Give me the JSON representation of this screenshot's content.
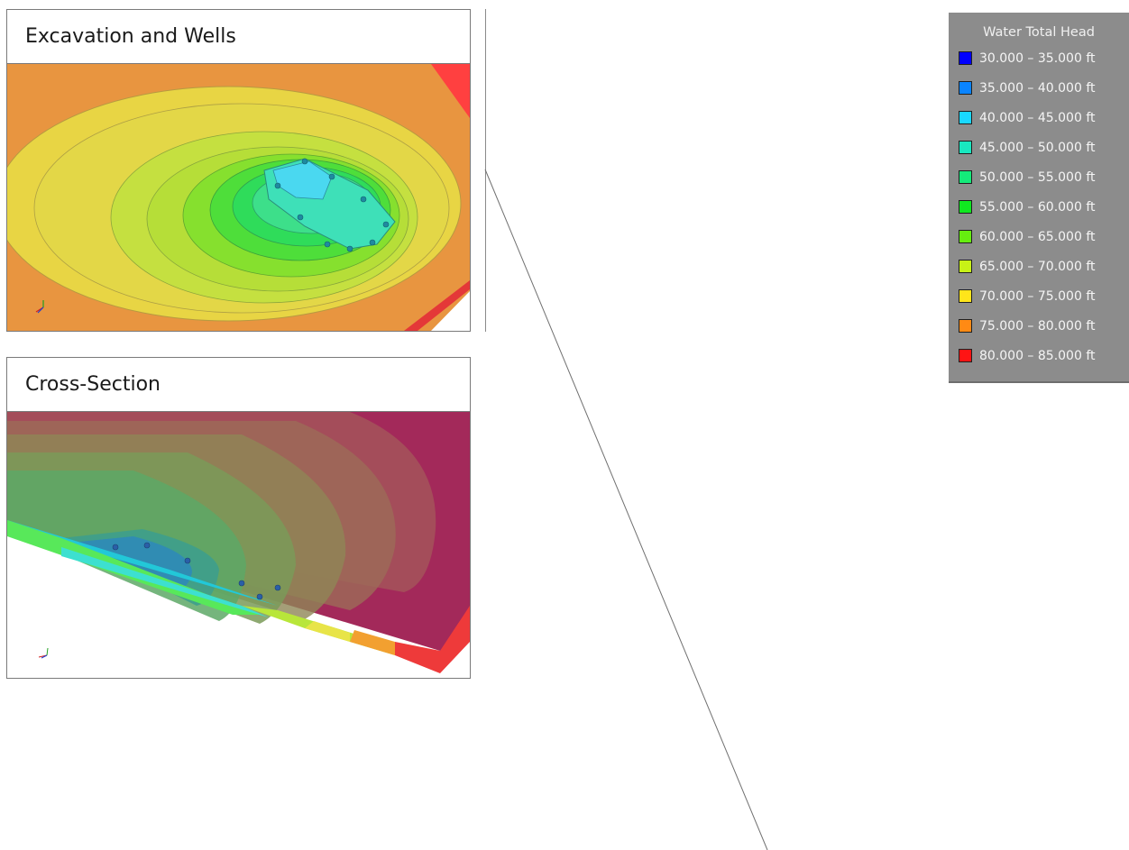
{
  "panels": {
    "excavation": {
      "title": "Excavation and Wells"
    },
    "cross_section": {
      "title": "Cross-Section"
    }
  },
  "legend": {
    "title": "Water Total Head",
    "items": [
      {
        "label": "30.000 – 35.000 ft",
        "color": "#0000ff"
      },
      {
        "label": "35.000 – 40.000 ft",
        "color": "#0a84ff"
      },
      {
        "label": "40.000 – 45.000 ft",
        "color": "#19d8ff"
      },
      {
        "label": "45.000 – 50.000 ft",
        "color": "#19e8c0"
      },
      {
        "label": "50.000 – 55.000 ft",
        "color": "#14ea7a"
      },
      {
        "label": "55.000 – 60.000 ft",
        "color": "#10e820"
      },
      {
        "label": "60.000 – 65.000 ft",
        "color": "#66ee10"
      },
      {
        "label": "65.000 – 70.000 ft",
        "color": "#c8f216"
      },
      {
        "label": "70.000 – 75.000 ft",
        "color": "#ffe51a"
      },
      {
        "label": "75.000 – 80.000 ft",
        "color": "#ff8a14"
      },
      {
        "label": "80.000 – 85.000 ft",
        "color": "#ff1414"
      }
    ]
  }
}
